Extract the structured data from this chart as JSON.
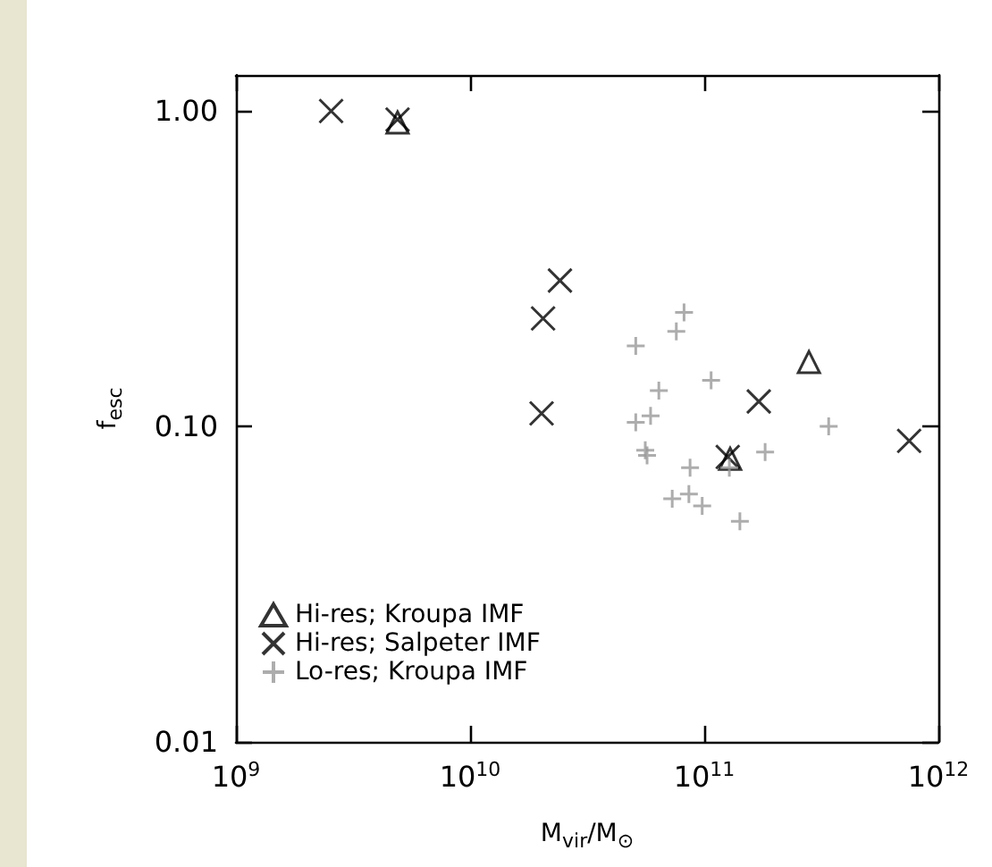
{
  "chart_data": {
    "type": "scatter",
    "xlabel": "M$_{vir}$/M$_{⊙}$",
    "ylabel": "f$_{esc}$",
    "log": "xy",
    "grid": false,
    "legend": "bottom left",
    "xlim": [
      1000000000.0,
      1000000000000.0
    ],
    "xticks": [
      {
        "value": 1000000000.0,
        "label": "10$^{9}$"
      },
      {
        "value": 10000000000.0,
        "label": "10$^{10}$"
      },
      {
        "value": 100000000000.0,
        "label": "10$^{11}$"
      },
      {
        "value": 1000000000000.0,
        "label": "10$^{12}$"
      }
    ],
    "ylim": [
      0.01,
      1.3
    ],
    "yticks": [
      {
        "value": 0.01,
        "label": "0.01"
      },
      {
        "value": 0.1,
        "label": "0.10"
      },
      {
        "value": 1,
        "label": "1.00"
      }
    ],
    "series": [
      {
        "name": "Hi-res; Kroupa IMF",
        "color": "#000000",
        "marker": "triangle",
        "x": [
          4900000000.0,
          280000000000.0,
          129000000000.0
        ],
        "values": [
          0.92,
          0.16,
          0.079
        ]
      },
      {
        "name": "Hi-res; Salpeter IMF",
        "color": "#000000",
        "marker": "cross",
        "x": [
          2550000000.0,
          4900000000.0,
          24200000000.0,
          20500000000.0,
          20200000000.0,
          171000000000.0,
          750000000000.0,
          126000000000.0
        ],
        "values": [
          1.0,
          0.94,
          0.29,
          0.22,
          0.11,
          0.12,
          0.09,
          0.08
        ]
      },
      {
        "name": "Lo-res; Kroupa IMF",
        "color": "#999999",
        "marker": "plus",
        "x": [
          82000000000.0,
          76000000000.0,
          51000000000.0,
          107000000000.0,
          64000000000.0,
          59000000000.0,
          51000000000.0,
          340000000000.0,
          56000000000.0,
          57000000000.0,
          182000000000.0,
          87000000000.0,
          128000000000.0,
          86000000000.0,
          73000000000.0,
          98000000000.0,
          142000000000.0
        ],
        "values": [
          0.23,
          0.2,
          0.18,
          0.14,
          0.13,
          0.108,
          0.103,
          0.1,
          0.084,
          0.081,
          0.083,
          0.074,
          0.074,
          0.061,
          0.059,
          0.056,
          0.05
        ]
      }
    ]
  }
}
